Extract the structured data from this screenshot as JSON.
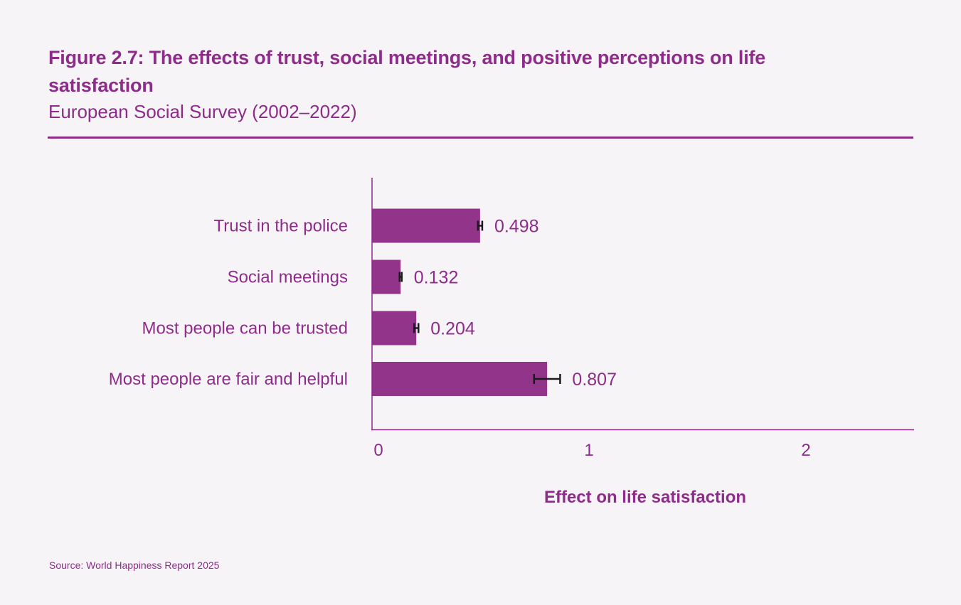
{
  "header": {
    "title": "Figure 2.7: The effects of trust, social meetings, and positive perceptions on life satisfaction",
    "subtitle": "European Social Survey (2002–2022)"
  },
  "footer": {
    "source": "Source: World Happiness Report 2025"
  },
  "colors": {
    "bar": "#93348b",
    "text": "#8e2c8a",
    "error_bar": "#1a1a1a",
    "background": "#f7f4f8"
  },
  "chart_data": {
    "type": "bar",
    "orientation": "horizontal",
    "title": "Figure 2.7: The effects of trust, social meetings, and positive perceptions on life satisfaction",
    "subtitle": "European Social Survey (2002–2022)",
    "xlabel": "Effect on life satisfaction",
    "ylabel": "",
    "categories": [
      "Trust in the police",
      "Social meetings",
      "Most people can be trusted",
      "Most people are fair and helpful"
    ],
    "values": [
      0.498,
      0.132,
      0.204,
      0.807
    ],
    "value_labels": [
      "0.498",
      "0.132",
      "0.204",
      "0.807"
    ],
    "error_margins": [
      0.01,
      0.005,
      0.01,
      0.06
    ],
    "xlim": [
      0,
      2.5
    ],
    "xticks": [
      0,
      1,
      2
    ],
    "xtick_labels": [
      "0",
      "1",
      "2"
    ],
    "grid": false,
    "legend": "none"
  }
}
